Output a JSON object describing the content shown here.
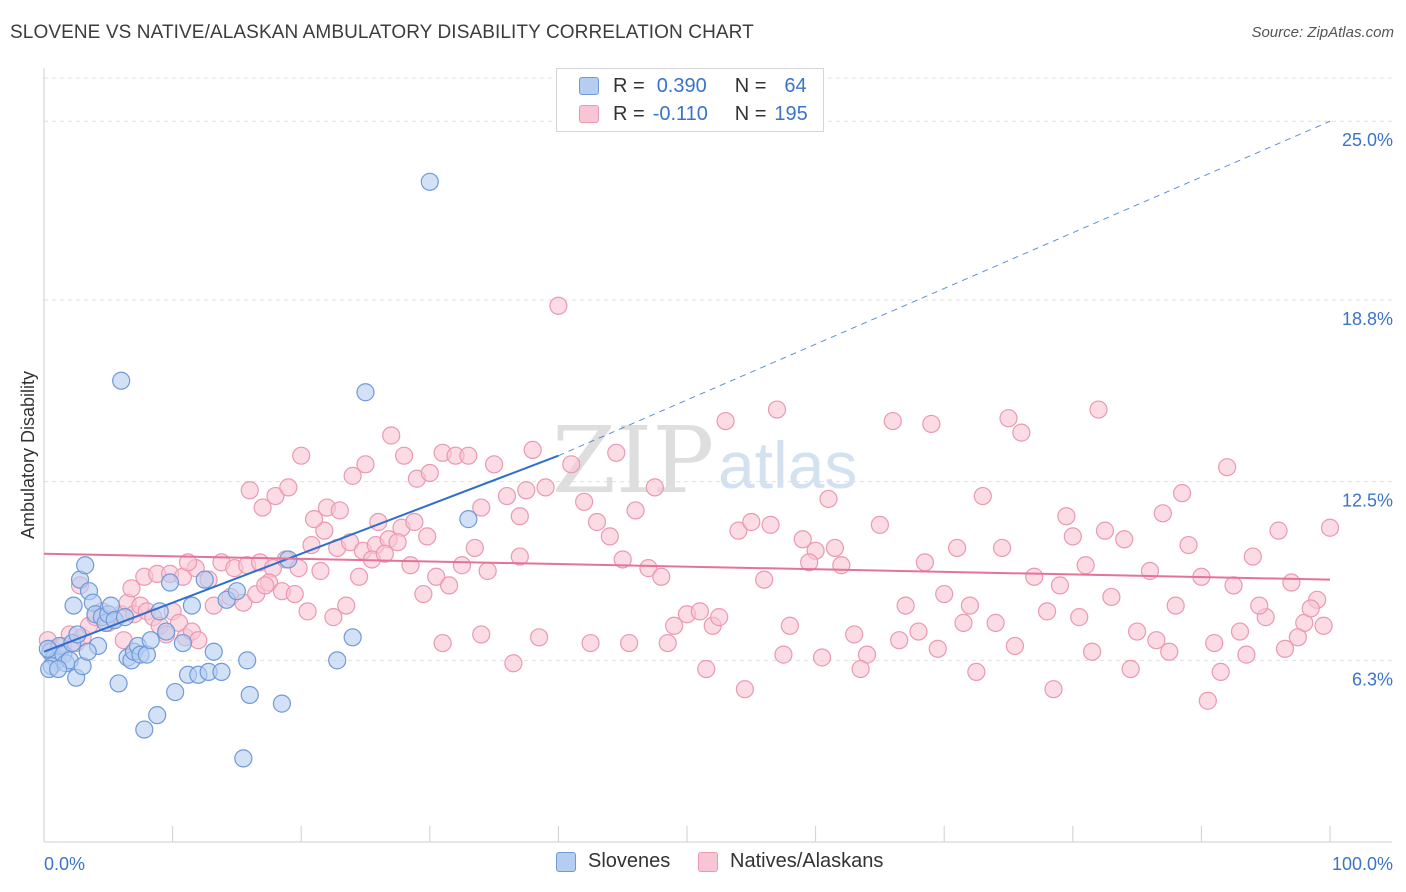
{
  "title": "SLOVENE VS NATIVE/ALASKAN AMBULATORY DISABILITY CORRELATION CHART",
  "source": "Source: ZipAtlas.com",
  "legend_box": {
    "rows": [
      {
        "r_label": "R =",
        "r_value": "0.390",
        "n_label": "N =",
        "n_value": "64"
      },
      {
        "r_label": "R =",
        "r_value": "-0.110",
        "n_label": "N =",
        "n_value": "195"
      }
    ]
  },
  "colors": {
    "blue_fill": "#b5cdf1",
    "blue_stroke": "#6f9ad8",
    "blue_line": "#2f6fcc",
    "pink_fill": "#f8c5d4",
    "pink_stroke": "#eb98b2",
    "pink_line": "#e4739a",
    "axis_label": "#3a74c9"
  },
  "chart_data": {
    "type": "scatter",
    "title": "SLOVENE VS NATIVE/ALASKAN AMBULATORY DISABILITY CORRELATION CHART",
    "xlabel": "",
    "ylabel": "Ambulatory Disability",
    "xlim": [
      0,
      100
    ],
    "ylim": [
      0,
      26.5
    ],
    "x_tick_labels": [
      "0.0%",
      "100.0%"
    ],
    "y_ticks": [
      6.3,
      12.5,
      18.8,
      25.0
    ],
    "y_tick_labels": [
      "6.3%",
      "12.5%",
      "18.8%",
      "25.0%"
    ],
    "grid": "horizontal dashed",
    "watermark": "ZIPatlas",
    "legend_position": "bottom-center",
    "series": [
      {
        "name": "Slovenes",
        "color": "#6f9ad8",
        "r": 0.39,
        "n": 64,
        "trend": {
          "x": [
            0,
            40
          ],
          "y": [
            6.6,
            13.4
          ],
          "dashed_extension_to": [
            100,
            25.0
          ]
        },
        "points": [
          [
            0.5,
            6.6
          ],
          [
            0.8,
            6.4
          ],
          [
            1.0,
            6.3
          ],
          [
            0.6,
            6.1
          ],
          [
            0.4,
            6.0
          ],
          [
            1.2,
            6.8
          ],
          [
            1.5,
            6.5
          ],
          [
            1.7,
            6.2
          ],
          [
            2.0,
            6.3
          ],
          [
            2.2,
            6.9
          ],
          [
            2.3,
            8.2
          ],
          [
            2.5,
            5.7
          ],
          [
            2.8,
            9.1
          ],
          [
            3.0,
            6.1
          ],
          [
            3.2,
            9.6
          ],
          [
            3.5,
            8.7
          ],
          [
            3.8,
            8.3
          ],
          [
            4.0,
            7.9
          ],
          [
            4.2,
            6.8
          ],
          [
            4.5,
            7.8
          ],
          [
            4.8,
            7.6
          ],
          [
            5.0,
            7.9
          ],
          [
            5.2,
            8.2
          ],
          [
            5.5,
            7.7
          ],
          [
            5.8,
            5.5
          ],
          [
            6.0,
            16.0
          ],
          [
            6.3,
            7.8
          ],
          [
            6.5,
            6.4
          ],
          [
            6.8,
            6.3
          ],
          [
            7.0,
            6.6
          ],
          [
            7.3,
            6.8
          ],
          [
            7.5,
            6.5
          ],
          [
            7.8,
            3.9
          ],
          [
            8.0,
            6.5
          ],
          [
            8.3,
            7.0
          ],
          [
            8.8,
            4.4
          ],
          [
            9.0,
            8.0
          ],
          [
            9.5,
            7.3
          ],
          [
            9.8,
            9.0
          ],
          [
            10.2,
            5.2
          ],
          [
            10.8,
            6.9
          ],
          [
            11.2,
            5.8
          ],
          [
            11.5,
            8.2
          ],
          [
            12.0,
            5.8
          ],
          [
            12.5,
            9.1
          ],
          [
            12.8,
            5.9
          ],
          [
            13.2,
            6.6
          ],
          [
            13.8,
            5.9
          ],
          [
            14.2,
            8.4
          ],
          [
            15.0,
            8.7
          ],
          [
            15.5,
            2.9
          ],
          [
            15.8,
            6.3
          ],
          [
            16.0,
            5.1
          ],
          [
            18.5,
            4.8
          ],
          [
            19.0,
            9.8
          ],
          [
            22.8,
            6.3
          ],
          [
            24.0,
            7.1
          ],
          [
            25.0,
            15.6
          ],
          [
            30.0,
            22.9
          ],
          [
            33.0,
            11.2
          ],
          [
            1.1,
            6.0
          ],
          [
            0.3,
            6.7
          ],
          [
            2.6,
            7.2
          ],
          [
            3.4,
            6.6
          ]
        ]
      },
      {
        "name": "Natives/Alaskans",
        "color": "#eb98b2",
        "r": -0.11,
        "n": 195,
        "trend": {
          "x": [
            0,
            100
          ],
          "y": [
            10.0,
            9.1
          ]
        },
        "points": [
          [
            0.3,
            7.0
          ],
          [
            0.6,
            6.7
          ],
          [
            1.0,
            6.5
          ],
          [
            1.5,
            6.8
          ],
          [
            2.0,
            7.2
          ],
          [
            2.5,
            6.9
          ],
          [
            3.0,
            7.1
          ],
          [
            3.5,
            7.5
          ],
          [
            4.0,
            7.8
          ],
          [
            4.5,
            8.0
          ],
          [
            5.0,
            7.6
          ],
          [
            5.5,
            7.7
          ],
          [
            6.0,
            7.9
          ],
          [
            6.5,
            8.3
          ],
          [
            7.0,
            7.9
          ],
          [
            7.5,
            8.2
          ],
          [
            8.0,
            8.0
          ],
          [
            8.5,
            7.8
          ],
          [
            9.0,
            7.5
          ],
          [
            9.5,
            7.2
          ],
          [
            10.0,
            8.0
          ],
          [
            10.5,
            7.6
          ],
          [
            11.0,
            7.1
          ],
          [
            11.5,
            7.3
          ],
          [
            12.0,
            7.0
          ],
          [
            6.8,
            8.8
          ],
          [
            7.8,
            9.2
          ],
          [
            8.8,
            9.3
          ],
          [
            9.8,
            9.3
          ],
          [
            10.8,
            9.2
          ],
          [
            11.8,
            9.5
          ],
          [
            12.8,
            9.1
          ],
          [
            13.8,
            9.7
          ],
          [
            14.8,
            9.5
          ],
          [
            15.8,
            9.6
          ],
          [
            16.8,
            9.7
          ],
          [
            17.8,
            9.5
          ],
          [
            18.8,
            9.8
          ],
          [
            19.8,
            9.5
          ],
          [
            20.8,
            10.3
          ],
          [
            21.8,
            10.8
          ],
          [
            22.8,
            10.2
          ],
          [
            23.8,
            10.4
          ],
          [
            24.8,
            10.1
          ],
          [
            25.8,
            10.3
          ],
          [
            26.8,
            10.5
          ],
          [
            27.8,
            10.9
          ],
          [
            28.8,
            11.1
          ],
          [
            29.8,
            10.6
          ],
          [
            14.5,
            8.5
          ],
          [
            15.5,
            8.3
          ],
          [
            16.5,
            8.6
          ],
          [
            17.5,
            9.0
          ],
          [
            18.5,
            8.7
          ],
          [
            19.5,
            8.6
          ],
          [
            20.5,
            8.0
          ],
          [
            21.5,
            9.4
          ],
          [
            22.5,
            7.8
          ],
          [
            23.5,
            8.2
          ],
          [
            24.5,
            9.2
          ],
          [
            25.5,
            9.8
          ],
          [
            26.5,
            10.0
          ],
          [
            27.5,
            10.4
          ],
          [
            28.5,
            9.6
          ],
          [
            29.5,
            8.6
          ],
          [
            30.5,
            9.2
          ],
          [
            31.5,
            8.9
          ],
          [
            32.5,
            9.6
          ],
          [
            33.5,
            10.2
          ],
          [
            34.5,
            9.4
          ],
          [
            16.0,
            12.2
          ],
          [
            17.0,
            11.6
          ],
          [
            18.0,
            12.0
          ],
          [
            19.0,
            12.3
          ],
          [
            20.0,
            13.4
          ],
          [
            21.0,
            11.2
          ],
          [
            22.0,
            11.6
          ],
          [
            23.0,
            11.5
          ],
          [
            24.0,
            12.7
          ],
          [
            25.0,
            13.1
          ],
          [
            26.0,
            11.1
          ],
          [
            27.0,
            14.1
          ],
          [
            28.0,
            13.4
          ],
          [
            29.0,
            12.6
          ],
          [
            30.0,
            12.8
          ],
          [
            31.0,
            13.5
          ],
          [
            32.0,
            13.4
          ],
          [
            33.0,
            13.4
          ],
          [
            34.0,
            11.6
          ],
          [
            35.0,
            13.1
          ],
          [
            36.0,
            12.0
          ],
          [
            37.0,
            11.3
          ],
          [
            38.0,
            13.6
          ],
          [
            39.0,
            12.3
          ],
          [
            40.0,
            18.6
          ],
          [
            41.0,
            13.1
          ],
          [
            42.0,
            11.8
          ],
          [
            43.0,
            11.1
          ],
          [
            44.0,
            10.6
          ],
          [
            45.0,
            9.8
          ],
          [
            46.0,
            11.5
          ],
          [
            47.0,
            9.5
          ],
          [
            48.0,
            9.2
          ],
          [
            49.0,
            7.5
          ],
          [
            50.0,
            7.9
          ],
          [
            51.0,
            8.0
          ],
          [
            52.0,
            7.5
          ],
          [
            53.0,
            14.6
          ],
          [
            54.0,
            10.8
          ],
          [
            55.0,
            11.1
          ],
          [
            56.0,
            9.1
          ],
          [
            57.0,
            15.0
          ],
          [
            58.0,
            7.5
          ],
          [
            59.0,
            10.5
          ],
          [
            60.0,
            10.1
          ],
          [
            61.0,
            11.9
          ],
          [
            62.0,
            9.6
          ],
          [
            63.0,
            7.2
          ],
          [
            64.0,
            6.5
          ],
          [
            65.0,
            11.0
          ],
          [
            66.0,
            14.6
          ],
          [
            67.0,
            8.2
          ],
          [
            68.0,
            7.3
          ],
          [
            69.0,
            14.5
          ],
          [
            70.0,
            8.6
          ],
          [
            71.0,
            10.2
          ],
          [
            72.0,
            8.2
          ],
          [
            73.0,
            12.0
          ],
          [
            74.0,
            7.6
          ],
          [
            75.0,
            14.7
          ],
          [
            76.0,
            14.2
          ],
          [
            77.0,
            9.2
          ],
          [
            78.0,
            8.0
          ],
          [
            79.0,
            8.9
          ],
          [
            80.0,
            10.6
          ],
          [
            81.0,
            9.6
          ],
          [
            82.0,
            15.0
          ],
          [
            83.0,
            8.5
          ],
          [
            84.0,
            10.5
          ],
          [
            85.0,
            7.3
          ],
          [
            86.0,
            9.4
          ],
          [
            87.0,
            11.4
          ],
          [
            88.0,
            8.2
          ],
          [
            89.0,
            10.3
          ],
          [
            90.0,
            9.2
          ],
          [
            91.0,
            6.9
          ],
          [
            92.0,
            13.0
          ],
          [
            93.0,
            7.3
          ],
          [
            94.0,
            9.9
          ],
          [
            95.0,
            7.8
          ],
          [
            96.0,
            10.8
          ],
          [
            97.0,
            9.0
          ],
          [
            98.0,
            7.6
          ],
          [
            99.0,
            8.4
          ],
          [
            100.0,
            10.9
          ],
          [
            36.5,
            6.2
          ],
          [
            38.5,
            7.1
          ],
          [
            42.5,
            6.9
          ],
          [
            45.5,
            6.9
          ],
          [
            48.5,
            6.9
          ],
          [
            51.5,
            6.0
          ],
          [
            54.5,
            5.3
          ],
          [
            57.5,
            6.5
          ],
          [
            60.5,
            6.4
          ],
          [
            63.5,
            6.0
          ],
          [
            66.5,
            7.0
          ],
          [
            69.5,
            6.7
          ],
          [
            72.5,
            5.9
          ],
          [
            75.5,
            6.8
          ],
          [
            78.5,
            5.3
          ],
          [
            81.5,
            6.6
          ],
          [
            84.5,
            6.0
          ],
          [
            87.5,
            6.6
          ],
          [
            90.5,
            4.9
          ],
          [
            93.5,
            6.5
          ],
          [
            96.5,
            6.7
          ],
          [
            99.5,
            7.5
          ],
          [
            31.0,
            6.9
          ],
          [
            34.0,
            7.2
          ],
          [
            37.0,
            9.9
          ],
          [
            52.5,
            7.8
          ],
          [
            59.5,
            9.7
          ],
          [
            71.5,
            7.6
          ],
          [
            80.5,
            7.8
          ],
          [
            86.5,
            7.0
          ],
          [
            91.5,
            5.9
          ],
          [
            94.5,
            8.2
          ],
          [
            97.5,
            7.1
          ],
          [
            98.5,
            8.1
          ],
          [
            37.5,
            12.2
          ],
          [
            44.5,
            13.5
          ],
          [
            47.5,
            12.3
          ],
          [
            56.5,
            11.0
          ],
          [
            61.5,
            10.2
          ],
          [
            68.5,
            9.7
          ],
          [
            74.5,
            10.2
          ],
          [
            79.5,
            11.3
          ],
          [
            82.5,
            10.8
          ],
          [
            88.5,
            12.1
          ],
          [
            92.5,
            8.9
          ],
          [
            2.8,
            8.9
          ],
          [
            6.2,
            7.0
          ],
          [
            11.2,
            9.7
          ],
          [
            13.2,
            8.2
          ],
          [
            17.2,
            8.9
          ]
        ]
      }
    ]
  },
  "bottom_legend": [
    {
      "label": "Slovenes"
    },
    {
      "label": "Natives/Alaskans"
    }
  ]
}
